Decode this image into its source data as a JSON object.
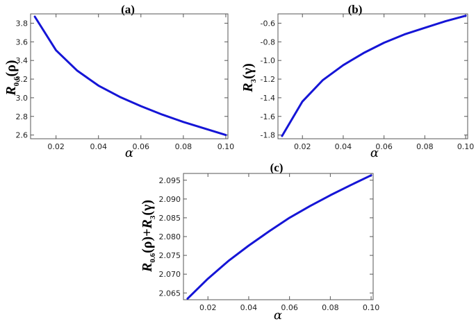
{
  "colors": {
    "curve": "#1515d6",
    "frame": "#555555"
  },
  "chart_data": [
    {
      "type": "line",
      "title": "(a)",
      "xlabel": "α",
      "ylabel": {
        "main": "R",
        "sub": "0.6",
        "arg": "(ρ)"
      },
      "xlim": [
        0.008,
        0.101
      ],
      "ylim": [
        2.56,
        3.9
      ],
      "xticks": [
        0.02,
        0.04,
        0.06,
        0.08,
        0.1
      ],
      "xtick_labels": [
        "0.02",
        "0.04",
        "0.06",
        "0.08",
        "0.10"
      ],
      "yticks": [
        2.6,
        2.8,
        3.0,
        3.2,
        3.4,
        3.6,
        3.8
      ],
      "ytick_labels": [
        "2.6",
        "2.8",
        "3.0",
        "3.2",
        "3.4",
        "3.6",
        "3.8"
      ],
      "series": [
        {
          "x": [
            0.01,
            0.02,
            0.03,
            0.04,
            0.05,
            0.06,
            0.07,
            0.08,
            0.09,
            0.1
          ],
          "y": [
            3.87,
            3.51,
            3.29,
            3.13,
            3.01,
            2.91,
            2.82,
            2.74,
            2.67,
            2.6
          ]
        }
      ]
    },
    {
      "type": "line",
      "title": "(b)",
      "xlabel": "α",
      "ylabel": {
        "main": "R",
        "sub": "3",
        "arg": "(γ)"
      },
      "xlim": [
        0.008,
        0.101
      ],
      "ylim": [
        -1.84,
        -0.5
      ],
      "xticks": [
        0.02,
        0.04,
        0.06,
        0.08,
        0.1
      ],
      "xtick_labels": [
        "0.02",
        "0.04",
        "0.06",
        "0.08",
        "0.10"
      ],
      "yticks": [
        -1.8,
        -1.6,
        -1.4,
        -1.2,
        -1.0,
        -0.8,
        -0.6
      ],
      "ytick_labels": [
        "-1.8",
        "-1.6",
        "-1.4",
        "-1.2",
        "-1.0",
        "-0.8",
        "-0.6"
      ],
      "series": [
        {
          "x": [
            0.01,
            0.02,
            0.03,
            0.04,
            0.05,
            0.06,
            0.07,
            0.08,
            0.09,
            0.1
          ],
          "y": [
            -1.81,
            -1.44,
            -1.21,
            -1.05,
            -0.92,
            -0.81,
            -0.72,
            -0.65,
            -0.58,
            -0.52
          ]
        }
      ]
    },
    {
      "type": "line",
      "title": "(c)",
      "xlabel": "α",
      "ylabel": {
        "main": "R",
        "sub": "0.6",
        "arg": "(ρ)+",
        "main2": "R",
        "sub2": "3",
        "arg2": "(γ)"
      },
      "xlim": [
        0.008,
        0.101
      ],
      "ylim": [
        2.0632,
        2.0968
      ],
      "xticks": [
        0.02,
        0.04,
        0.06,
        0.08,
        0.1
      ],
      "xtick_labels": [
        "0.02",
        "0.04",
        "0.06",
        "0.08",
        "0.10"
      ],
      "yticks": [
        2.065,
        2.07,
        2.075,
        2.08,
        2.085,
        2.09,
        2.095
      ],
      "ytick_labels": [
        "2.065",
        "2.070",
        "2.075",
        "2.080",
        "2.085",
        "2.090",
        "2.095"
      ],
      "series": [
        {
          "x": [
            0.01,
            0.02,
            0.03,
            0.04,
            0.05,
            0.06,
            0.07,
            0.08,
            0.09,
            0.1
          ],
          "y": [
            2.0635,
            2.0688,
            2.0735,
            2.0776,
            2.0814,
            2.085,
            2.0881,
            2.091,
            2.0937,
            2.0963
          ]
        }
      ]
    }
  ]
}
